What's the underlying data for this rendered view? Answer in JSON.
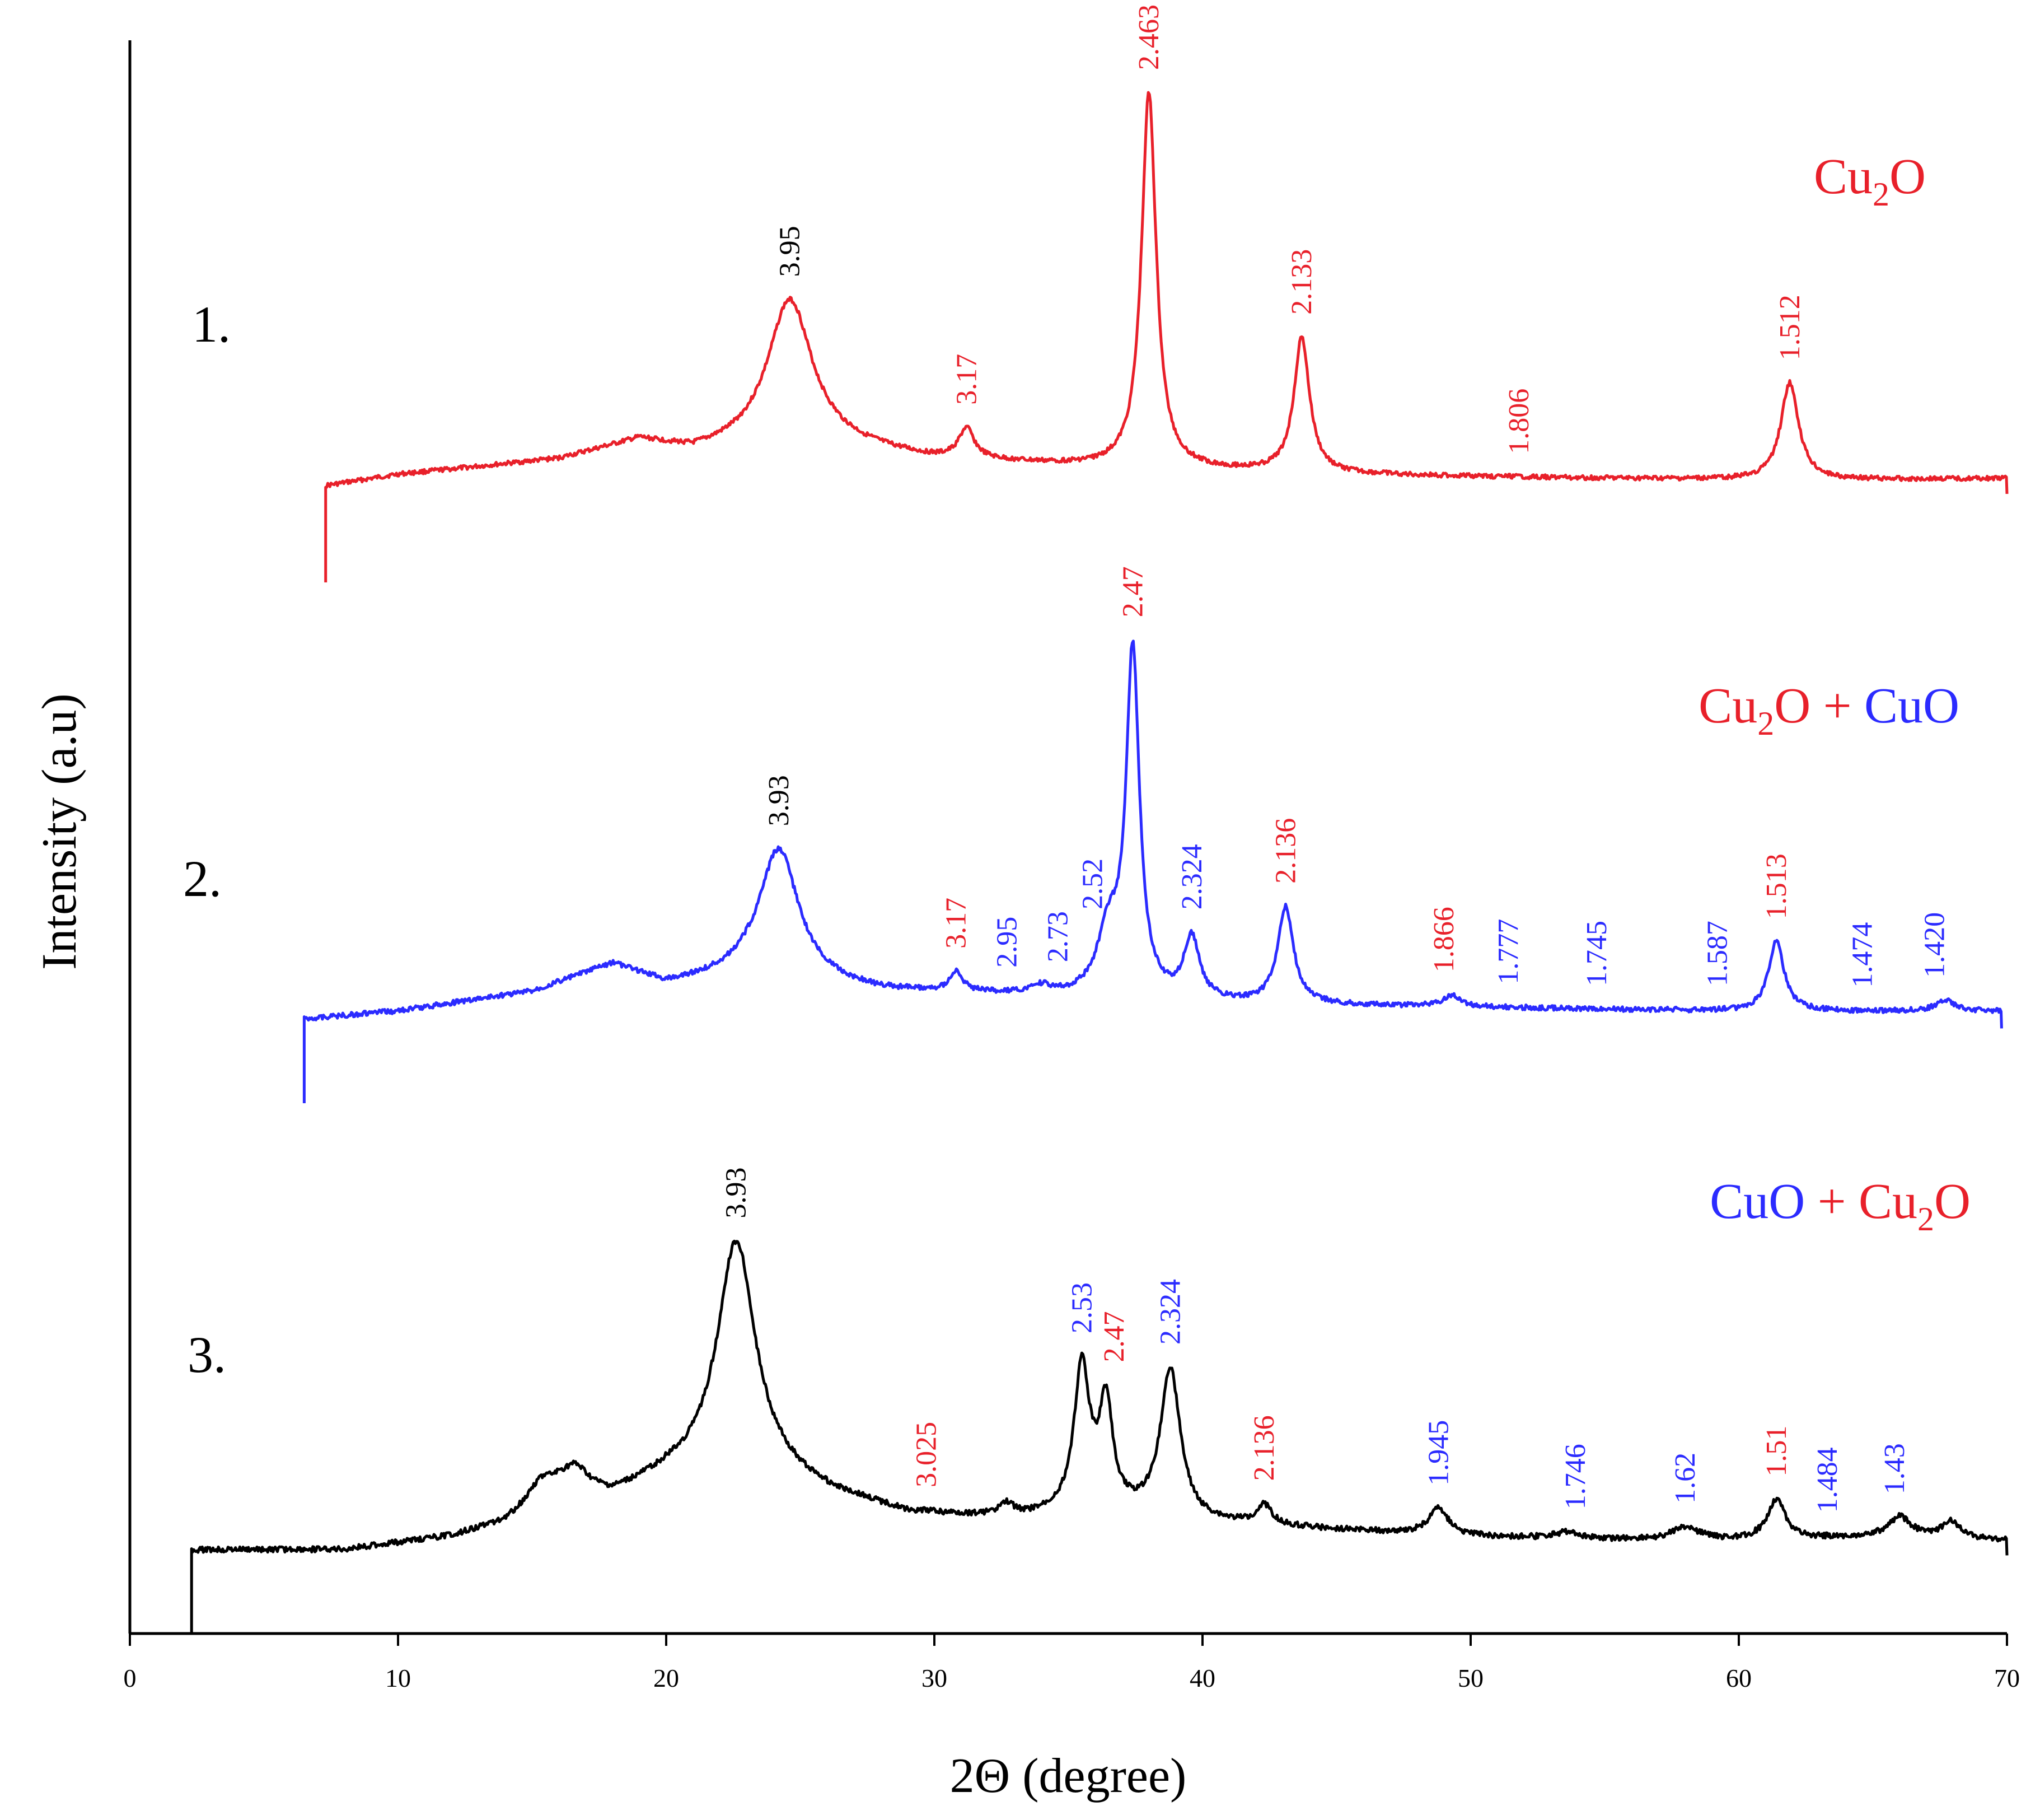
{
  "chart_data": {
    "type": "line",
    "title": "",
    "xlabel": "2Θ (degree)",
    "ylabel": "Intensity (a.u)",
    "xlim": [
      0,
      70
    ],
    "xticks": [
      "0",
      "10",
      "20",
      "30",
      "40",
      "50",
      "60",
      "70"
    ],
    "colors": {
      "cu2o": "#e8202a",
      "cuo": "#2b2bff",
      "other": "#000000"
    },
    "series": [
      {
        "name": "1.",
        "number": "1.",
        "color": "#e8202a",
        "legend": [
          {
            "text": "Cu",
            "sub": "2",
            "tail": "O",
            "color": "#e8202a"
          }
        ],
        "x_start": 7.3,
        "x_end": 70,
        "baseline": 0.1,
        "background": [
          [
            7.3,
            0
          ],
          [
            10,
            0.03
          ],
          [
            16,
            0.07
          ],
          [
            19,
            0.12
          ],
          [
            21,
            0.09
          ],
          [
            25,
            0.12
          ],
          [
            30,
            0.07
          ],
          [
            36,
            0.05
          ],
          [
            45,
            0.03
          ],
          [
            55,
            0.02
          ],
          [
            62,
            0.015
          ],
          [
            70,
            0.02
          ]
        ],
        "peaks": [
          [
            24.6,
            0.38,
            1.0
          ],
          [
            31.2,
            0.08,
            0.35
          ],
          [
            38.0,
            1.0,
            0.33
          ],
          [
            43.7,
            0.36,
            0.35
          ],
          [
            61.9,
            0.26,
            0.4
          ]
        ],
        "labels": [
          {
            "x": 24.6,
            "text": "3.95",
            "cls": "other"
          },
          {
            "x": 31.2,
            "text": "3.17",
            "cls": "cu2o"
          },
          {
            "x": 38.0,
            "text": "2.463",
            "cls": "cu2o"
          },
          {
            "x": 43.7,
            "text": "2.133",
            "cls": "cu2o"
          },
          {
            "x": 51.8,
            "text": "1.806",
            "cls": "cu2o"
          },
          {
            "x": 61.9,
            "text": "1.512",
            "cls": "cu2o"
          }
        ]
      },
      {
        "name": "2.",
        "number": "2.",
        "color": "#2b2bff",
        "legend": [
          {
            "text": "Cu",
            "sub": "2",
            "tail": "O",
            "color": "#e8202a"
          },
          {
            "text": " + ",
            "sub": "",
            "tail": "",
            "color": "#e8202a"
          },
          {
            "text": "CuO",
            "sub": "",
            "tail": "",
            "color": "#2b2bff"
          }
        ],
        "x_start": 6.5,
        "x_end": 69.8,
        "baseline": 0.08,
        "background": [
          [
            6.5,
            0
          ],
          [
            10,
            0.02
          ],
          [
            15,
            0.07
          ],
          [
            18,
            0.14
          ],
          [
            20,
            0.09
          ],
          [
            23,
            0.11
          ],
          [
            28,
            0.07
          ],
          [
            33,
            0.06
          ],
          [
            40,
            0.04
          ],
          [
            50,
            0.03
          ],
          [
            60,
            0.02
          ],
          [
            69.8,
            0.02
          ]
        ],
        "peaks": [
          [
            24.2,
            0.34,
            0.9
          ],
          [
            30.8,
            0.05,
            0.3
          ],
          [
            34.0,
            0.02,
            0.4
          ],
          [
            36.5,
            0.16,
            0.5
          ],
          [
            37.4,
            0.89,
            0.3
          ],
          [
            39.6,
            0.16,
            0.35
          ],
          [
            43.1,
            0.25,
            0.35
          ],
          [
            49.3,
            0.03,
            0.4
          ],
          [
            61.4,
            0.18,
            0.35
          ],
          [
            67.7,
            0.03,
            0.4
          ]
        ],
        "labels": [
          {
            "x": 24.2,
            "text": "3.93",
            "cls": "other"
          },
          {
            "x": 30.8,
            "text": "3.17",
            "cls": "cu2o"
          },
          {
            "x": 32.7,
            "text": "2.95",
            "cls": "cuo"
          },
          {
            "x": 34.6,
            "text": "2.73",
            "cls": "cuo"
          },
          {
            "x": 35.9,
            "text": "2.52",
            "cls": "cuo"
          },
          {
            "x": 37.4,
            "text": "2.47",
            "cls": "cu2o"
          },
          {
            "x": 39.6,
            "text": "2.324",
            "cls": "cuo"
          },
          {
            "x": 43.1,
            "text": "2.136",
            "cls": "cu2o"
          },
          {
            "x": 49.0,
            "text": "1.866",
            "cls": "cu2o"
          },
          {
            "x": 51.4,
            "text": "1.777",
            "cls": "cuo"
          },
          {
            "x": 54.7,
            "text": "1.745",
            "cls": "cuo"
          },
          {
            "x": 59.2,
            "text": "1.587",
            "cls": "cuo"
          },
          {
            "x": 61.4,
            "text": "1.513",
            "cls": "cu2o"
          },
          {
            "x": 64.6,
            "text": "1.474",
            "cls": "cuo"
          },
          {
            "x": 67.3,
            "text": "1.420",
            "cls": "cuo"
          }
        ]
      },
      {
        "name": "3.",
        "number": "3.",
        "color": "#000000",
        "legend": [
          {
            "text": "CuO",
            "sub": "",
            "tail": "",
            "color": "#2b2bff"
          },
          {
            "text": " + ",
            "sub": "",
            "tail": "",
            "color": "#e8202a"
          },
          {
            "text": "Cu",
            "sub": "2",
            "tail": "O",
            "color": "#e8202a"
          }
        ],
        "x_start": 2.3,
        "x_end": 70,
        "baseline": 0.02,
        "background": [
          [
            2.3,
            0
          ],
          [
            8,
            0.0
          ],
          [
            10,
            0.02
          ],
          [
            12,
            0.04
          ],
          [
            14,
            0.08
          ],
          [
            16,
            0.17
          ],
          [
            18,
            0.16
          ],
          [
            20,
            0.22
          ],
          [
            23,
            0.26
          ],
          [
            26,
            0.17
          ],
          [
            29,
            0.11
          ],
          [
            33,
            0.09
          ],
          [
            36,
            0.12
          ],
          [
            40,
            0.08
          ],
          [
            45,
            0.06
          ],
          [
            50,
            0.04
          ],
          [
            55,
            0.03
          ],
          [
            60,
            0.03
          ],
          [
            66,
            0.04
          ],
          [
            70,
            0.03
          ]
        ],
        "peaks": [
          [
            15.3,
            0.06,
            0.6
          ],
          [
            16.6,
            0.07,
            0.6
          ],
          [
            22.6,
            0.68,
            0.85
          ],
          [
            32.7,
            0.04,
            0.4
          ],
          [
            35.5,
            0.43,
            0.35
          ],
          [
            36.4,
            0.31,
            0.3
          ],
          [
            38.8,
            0.45,
            0.45
          ],
          [
            42.3,
            0.06,
            0.35
          ],
          [
            48.8,
            0.08,
            0.45
          ],
          [
            53.6,
            0.02,
            0.6
          ],
          [
            58.0,
            0.04,
            0.6
          ],
          [
            61.4,
            0.12,
            0.4
          ],
          [
            66.0,
            0.06,
            0.5
          ],
          [
            67.9,
            0.05,
            0.4
          ]
        ],
        "labels": [
          {
            "x": 22.6,
            "text": "3.93",
            "cls": "other"
          },
          {
            "x": 29.7,
            "text": "3.025",
            "cls": "cu2o"
          },
          {
            "x": 35.5,
            "text": "2.53",
            "cls": "cuo"
          },
          {
            "x": 36.7,
            "text": "2.47",
            "cls": "cu2o"
          },
          {
            "x": 38.8,
            "text": "2.324",
            "cls": "cuo"
          },
          {
            "x": 42.3,
            "text": "2.136",
            "cls": "cu2o"
          },
          {
            "x": 48.8,
            "text": "1.945",
            "cls": "cuo"
          },
          {
            "x": 53.9,
            "text": "1.746",
            "cls": "cuo"
          },
          {
            "x": 58.0,
            "text": "1.62",
            "cls": "cuo"
          },
          {
            "x": 61.4,
            "text": "1.51",
            "cls": "cu2o"
          },
          {
            "x": 63.3,
            "text": "1.484",
            "cls": "cuo"
          },
          {
            "x": 65.8,
            "text": "1.43",
            "cls": "cuo"
          }
        ]
      }
    ]
  }
}
